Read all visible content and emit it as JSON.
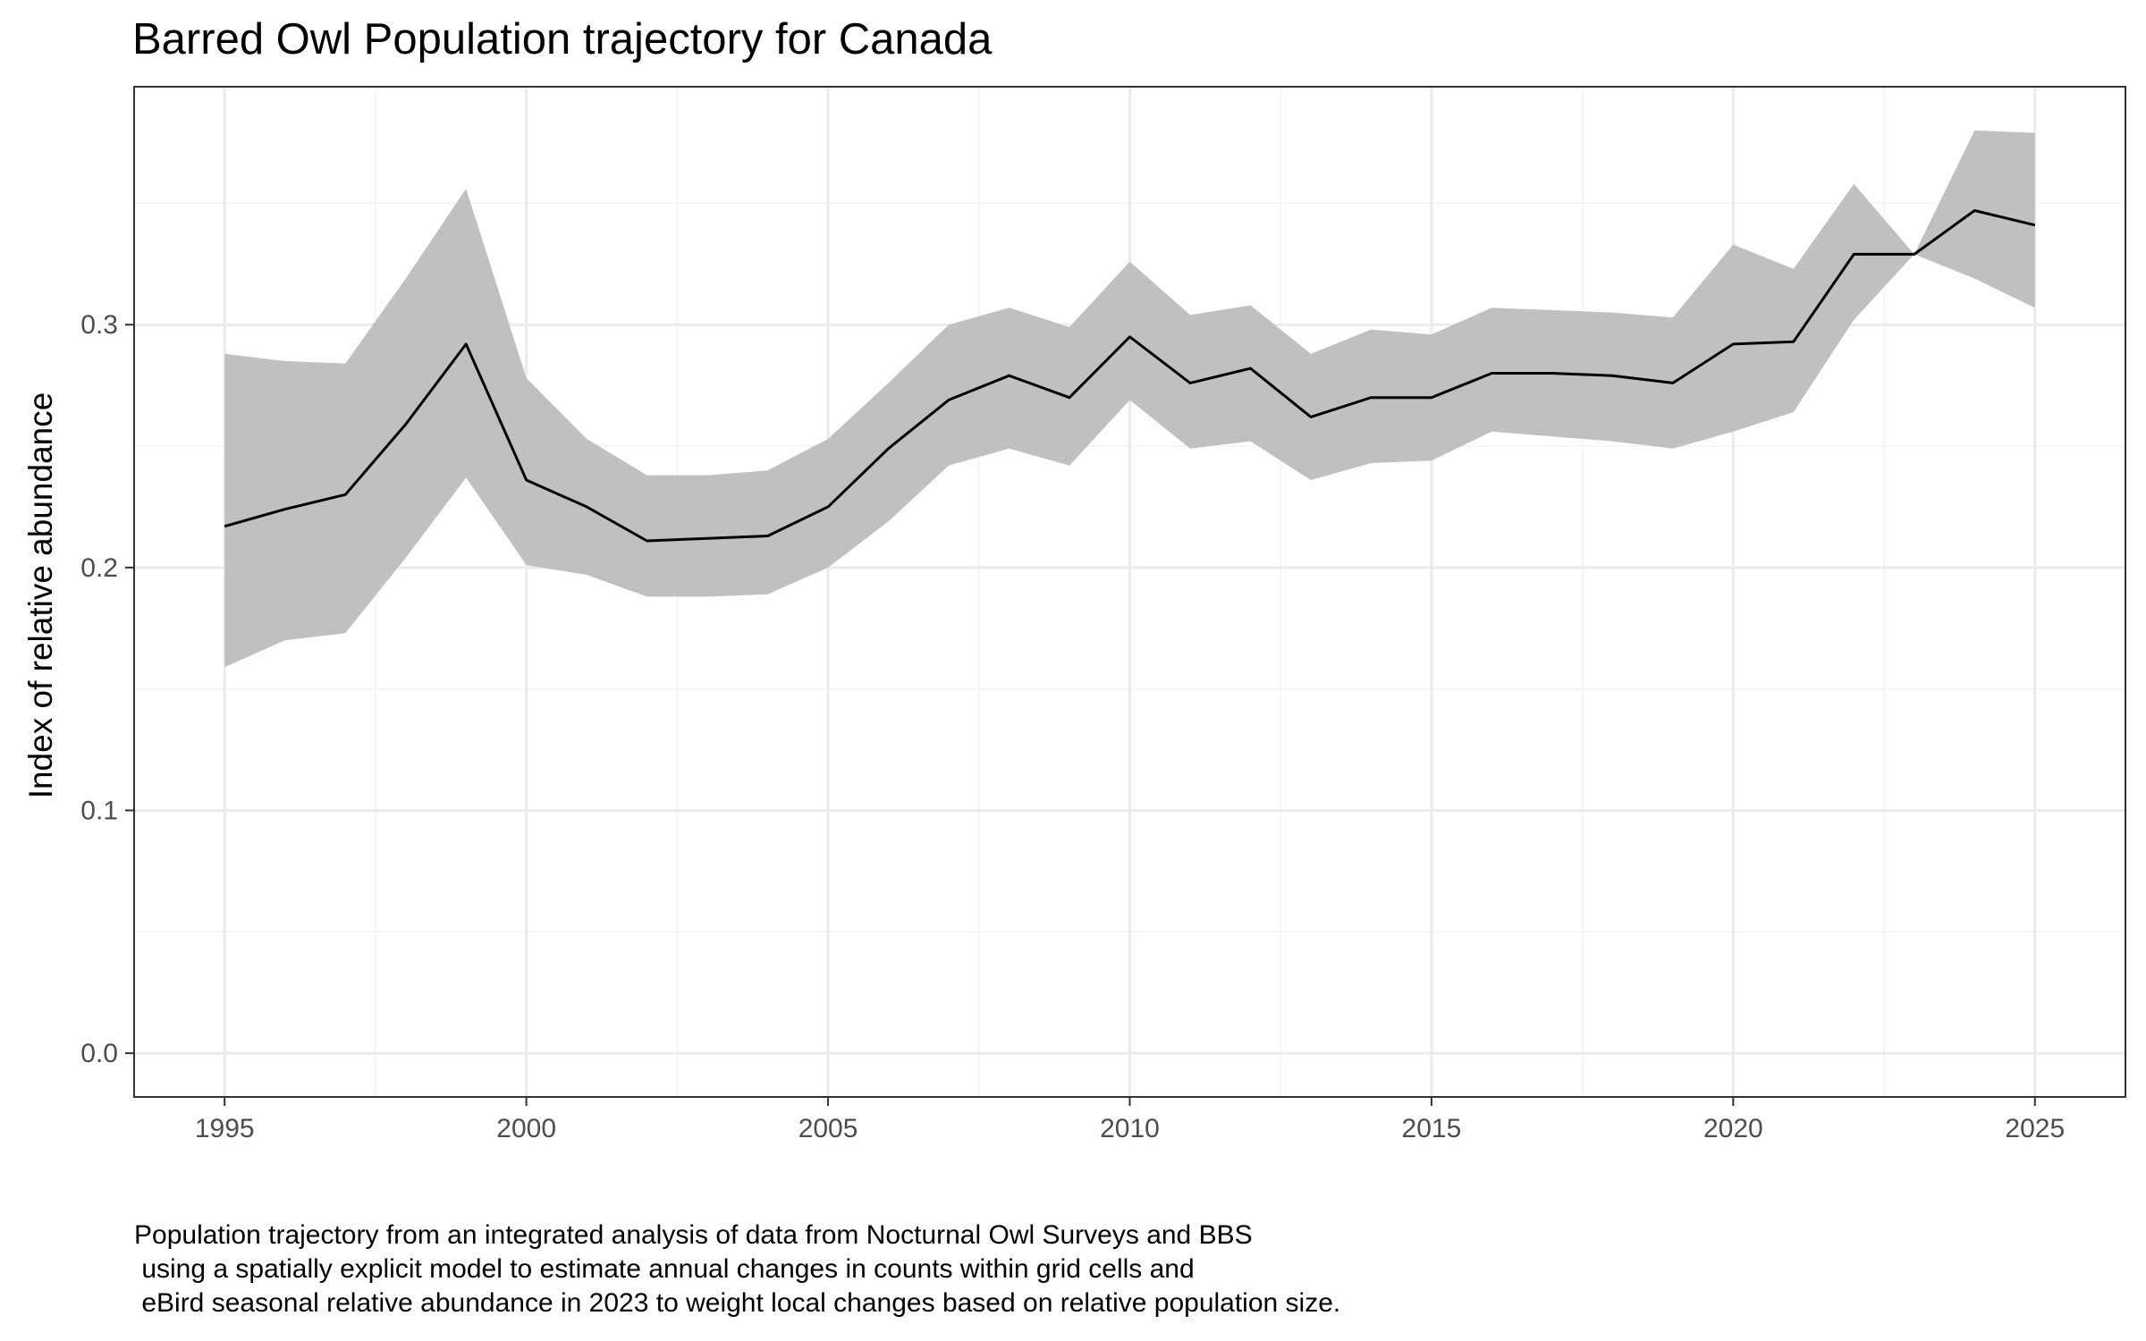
{
  "chart_data": {
    "type": "line",
    "title": "Barred Owl Population trajectory for Canada",
    "xlabel": "",
    "ylabel": "Index of relative abundance",
    "x": [
      1995,
      1996,
      1997,
      1998,
      1999,
      2000,
      2001,
      2002,
      2003,
      2004,
      2005,
      2006,
      2007,
      2008,
      2009,
      2010,
      2011,
      2012,
      2013,
      2014,
      2015,
      2016,
      2017,
      2018,
      2019,
      2020,
      2021,
      2022,
      2023,
      2024,
      2025
    ],
    "series": [
      {
        "values": [
          0.217,
          0.224,
          0.23,
          0.259,
          0.292,
          0.236,
          0.225,
          0.211,
          0.212,
          0.213,
          0.225,
          0.249,
          0.269,
          0.279,
          0.27,
          0.295,
          0.276,
          0.282,
          0.262,
          0.27,
          0.27,
          0.28,
          0.28,
          0.279,
          0.276,
          0.292,
          0.293,
          0.329,
          0.329,
          0.347,
          0.341
        ],
        "lower": [
          0.159,
          0.17,
          0.173,
          0.204,
          0.237,
          0.201,
          0.197,
          0.188,
          0.188,
          0.189,
          0.2,
          0.219,
          0.242,
          0.249,
          0.242,
          0.269,
          0.249,
          0.252,
          0.236,
          0.243,
          0.244,
          0.256,
          0.254,
          0.252,
          0.249,
          0.256,
          0.264,
          0.302,
          0.329,
          0.319,
          0.307
        ],
        "upper": [
          0.288,
          0.285,
          0.284,
          0.319,
          0.356,
          0.278,
          0.253,
          0.238,
          0.238,
          0.24,
          0.253,
          0.276,
          0.3,
          0.307,
          0.299,
          0.326,
          0.304,
          0.308,
          0.288,
          0.298,
          0.296,
          0.307,
          0.306,
          0.305,
          0.303,
          0.333,
          0.323,
          0.358,
          0.329,
          0.38,
          0.379
        ]
      }
    ],
    "xlim": [
      1993.5,
      2026.5
    ],
    "ylim": [
      -0.018,
      0.398
    ],
    "xticks": [
      1995,
      2000,
      2005,
      2010,
      2015,
      2020,
      2025
    ],
    "yticks": [
      0.0,
      0.1,
      0.2,
      0.3
    ],
    "xtick_labels": [
      "1995",
      "2000",
      "2005",
      "2010",
      "2015",
      "2020",
      "2025"
    ],
    "ytick_labels": [
      "0.0",
      "0.1",
      "0.2",
      "0.3"
    ],
    "grid": true,
    "colors": {
      "line": "#000000",
      "ribbon": "#c0c0c0",
      "grid_major": "#ebebeb",
      "grid_minor": "#f4f4f4",
      "panel_border": "#333333"
    }
  },
  "caption": [
    "Population trajectory from an integrated analysis of data from Nocturnal Owl Surveys and BBS",
    " using a spatially explicit model to estimate annual changes in counts within grid cells and",
    " eBird seasonal relative abundance in 2023 to weight local changes based on relative population size."
  ]
}
